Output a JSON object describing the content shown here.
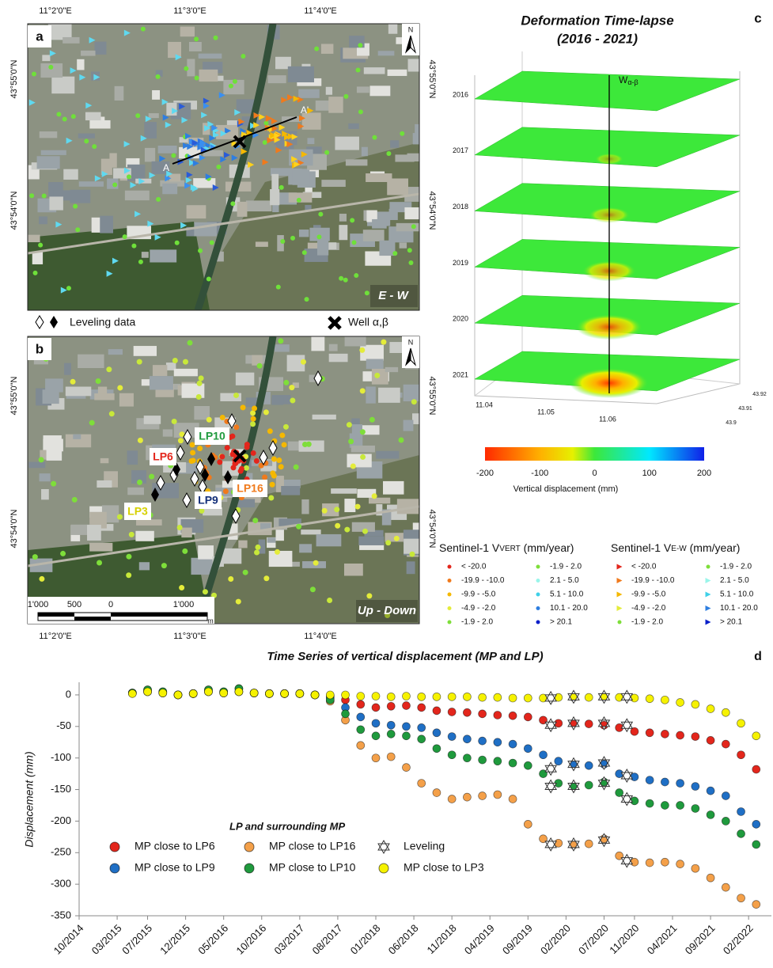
{
  "panel_a": {
    "letter": "a",
    "orientation": "E - W",
    "section_start": "A",
    "section_end": "A'",
    "north": "N",
    "lon_labels": [
      "11°2'0\"E",
      "11°3'0\"E",
      "11°4'0\"E"
    ],
    "lat_labels": [
      "43°55'0\"N",
      "43°54'0\"N"
    ]
  },
  "map_legend": {
    "leveling": "Leveling data",
    "well": "Well α,β"
  },
  "panel_b": {
    "letter": "b",
    "orientation": "Up - Down",
    "north": "N",
    "lp_labels": [
      "LP10",
      "LP6",
      "LP16",
      "LP9",
      "LP3"
    ],
    "lon_labels": [
      "11°2'0\"E",
      "11°3'0\"E",
      "11°4'0\"E"
    ],
    "lat_labels": [
      "43°55'0\"N",
      "43°54'0\"N"
    ],
    "scale_labels": [
      "1'000",
      "500",
      "0",
      "1'000"
    ],
    "scale_unit": "m"
  },
  "panel_c": {
    "title": "Deformation Time-lapse",
    "subtitle": "(2016 - 2021)",
    "letter": "c",
    "well_label": "W",
    "well_sub": "α-β",
    "years": [
      2016,
      2017,
      2018,
      2019,
      2020,
      2021
    ],
    "x_ticks": [
      11.04,
      11.05,
      11.06
    ],
    "y_ticks": [
      43.92,
      43.91,
      43.9
    ],
    "colorbar": {
      "lim": [
        -200,
        200
      ],
      "ticks": [
        -200,
        -100,
        0,
        100,
        200
      ],
      "label": "Vertical displacement (mm)"
    }
  },
  "sentinel_legends": [
    {
      "prefix": "Sentinel-1 V",
      "sub": "VERT",
      "suffix": " (mm/year)",
      "items": [
        {
          "label": "< -20.0",
          "color": "#e3261c",
          "shape": "circle"
        },
        {
          "label": "-19.9 - -10.0",
          "color": "#f07a1c",
          "shape": "circle"
        },
        {
          "label": "-9.9 - -5.0",
          "color": "#f5b800",
          "shape": "circle"
        },
        {
          "label": "-4.9 - -2.0",
          "color": "#e4ec3a",
          "shape": "circle"
        },
        {
          "label": "-1.9 - 2.0",
          "color": "#7ede3a",
          "shape": "circle"
        },
        {
          "label": "-1.9 - 2.0",
          "color": "#7ede3a",
          "shape": "circle"
        },
        {
          "label": "2.1 - 5.0",
          "color": "#9af5ea",
          "shape": "circle"
        },
        {
          "label": "5.1 - 10.0",
          "color": "#3fd0e8",
          "shape": "circle"
        },
        {
          "label": "10.1 - 20.0",
          "color": "#2e7ee0",
          "shape": "circle"
        },
        {
          "label": "> 20.1",
          "color": "#0a1fc9",
          "shape": "circle"
        }
      ]
    },
    {
      "prefix": "Sentinel-1 V",
      "sub": "E-W",
      "suffix": " (mm/year)",
      "items": [
        {
          "label": "< -20.0",
          "color": "#e3261c",
          "shape": "triangle"
        },
        {
          "label": "-19.9 - -10.0",
          "color": "#f07a1c",
          "shape": "triangle"
        },
        {
          "label": "-9.9 - -5.0",
          "color": "#f5b800",
          "shape": "triangle"
        },
        {
          "label": "-4.9 - -2.0",
          "color": "#e4ec3a",
          "shape": "triangle"
        },
        {
          "label": "-1.9 - 2.0",
          "color": "#7ede3a",
          "shape": "circle"
        },
        {
          "label": "-1.9 - 2.0",
          "color": "#7ede3a",
          "shape": "circle"
        },
        {
          "label": "2.1 - 5.0",
          "color": "#9af5ea",
          "shape": "triangle"
        },
        {
          "label": "5.1 - 10.0",
          "color": "#3fd0e8",
          "shape": "triangle"
        },
        {
          "label": "10.1 - 20.0",
          "color": "#2e7ee0",
          "shape": "triangle"
        },
        {
          "label": "> 20.1",
          "color": "#0a1fc9",
          "shape": "triangle"
        }
      ]
    }
  ],
  "chart_data": {
    "type": "scatter",
    "title": "Time Series of vertical displacement (MP and LP)",
    "letter": "d",
    "y_label": "Displacement (mm)",
    "legend_title": "LP and surrounding MP",
    "x": [
      "2015-05",
      "2015-07",
      "2015-09",
      "2015-11",
      "2016-01",
      "2016-03",
      "2016-05",
      "2016-07",
      "2016-09",
      "2016-11",
      "2017-01",
      "2017-03",
      "2017-05",
      "2017-07",
      "2017-09",
      "2017-11",
      "2018-01",
      "2018-03",
      "2018-05",
      "2018-07",
      "2018-09",
      "2018-11",
      "2019-01",
      "2019-03",
      "2019-05",
      "2019-07",
      "2019-09",
      "2019-11",
      "2020-01",
      "2020-03",
      "2020-05",
      "2020-07",
      "2020-09",
      "2020-11",
      "2021-01",
      "2021-03",
      "2021-05",
      "2021-07",
      "2021-09",
      "2021-11",
      "2022-01",
      "2022-03"
    ],
    "series": [
      {
        "name": "MP close to LP6",
        "color": "#e3261c",
        "values": [
          3,
          5,
          3,
          0,
          2,
          5,
          3,
          5,
          3,
          2,
          2,
          2,
          0,
          -2,
          -8,
          -15,
          -20,
          -18,
          -17,
          -20,
          -25,
          -27,
          -28,
          -30,
          -32,
          -33,
          -35,
          -40,
          -45,
          -45,
          -46,
          -48,
          -52,
          -58,
          -60,
          -62,
          -64,
          -66,
          -72,
          -78,
          -95,
          -118
        ]
      },
      {
        "name": "MP close to LP16",
        "color": "#f4a049",
        "values": [
          3,
          8,
          5,
          0,
          2,
          8,
          5,
          10,
          3,
          2,
          2,
          2,
          0,
          -10,
          -40,
          -80,
          -100,
          -98,
          -115,
          -140,
          -155,
          -165,
          -162,
          -160,
          -158,
          -165,
          -205,
          -228,
          -235,
          -238,
          -236,
          -228,
          -255,
          -265,
          -266,
          -265,
          -268,
          -275,
          -290,
          -305,
          -322,
          -332
        ]
      },
      {
        "name": "MP close to LP9",
        "color": "#1f6fc5",
        "values": [
          3,
          5,
          3,
          0,
          2,
          5,
          3,
          5,
          3,
          2,
          2,
          2,
          0,
          -5,
          -20,
          -35,
          -45,
          -48,
          -50,
          -52,
          -60,
          -66,
          -70,
          -73,
          -75,
          -78,
          -85,
          -95,
          -105,
          -110,
          -112,
          -110,
          -125,
          -130,
          -135,
          -138,
          -140,
          -145,
          -152,
          -160,
          -185,
          -205
        ]
      },
      {
        "name": "MP close to LP10",
        "color": "#1f9a3d",
        "values": [
          3,
          8,
          5,
          0,
          2,
          8,
          5,
          10,
          3,
          2,
          2,
          2,
          0,
          -8,
          -30,
          -55,
          -65,
          -62,
          -65,
          -70,
          -85,
          -95,
          -100,
          -103,
          -105,
          -108,
          -112,
          -125,
          -140,
          -145,
          -143,
          -138,
          -155,
          -168,
          -172,
          -175,
          -175,
          -180,
          -190,
          -200,
          -220,
          -237
        ]
      },
      {
        "name": "MP close to LP3",
        "color": "#f6f200",
        "values": [
          2,
          5,
          3,
          0,
          2,
          5,
          3,
          5,
          3,
          2,
          2,
          2,
          0,
          0,
          0,
          -2,
          -2,
          -3,
          -2,
          -3,
          -3,
          -3,
          -3,
          -4,
          -4,
          -5,
          -5,
          -5,
          -4,
          -4,
          -4,
          -3,
          -4,
          -5,
          -6,
          -8,
          -12,
          -15,
          -22,
          -28,
          -45,
          -65
        ]
      }
    ],
    "leveling": {
      "name": "Leveling",
      "x": [
        "2019-12",
        "2020-03",
        "2020-07",
        "2020-10"
      ],
      "values": [
        [
          -48,
          -45,
          -45,
          -48
        ],
        [
          -237,
          -237,
          -230,
          -263
        ],
        [
          -117,
          -110,
          -108,
          -128
        ],
        [
          -145,
          -145,
          -140,
          -165
        ],
        [
          -5,
          -3,
          -3,
          -3
        ]
      ]
    },
    "xlim": [
      "2014-10",
      "2022-05"
    ],
    "xticks": [
      {
        "value": "2014-10",
        "label": "10/2014"
      },
      {
        "value": "2015-03",
        "label": "03/2015"
      },
      {
        "value": "2015-07",
        "label": "07/2015"
      },
      {
        "value": "2015-12",
        "label": "12/2015"
      },
      {
        "value": "2016-05",
        "label": "05/2016"
      },
      {
        "value": "2016-10",
        "label": "10/2016"
      },
      {
        "value": "2017-03",
        "label": "03/2017"
      },
      {
        "value": "2017-08",
        "label": "08/2017"
      },
      {
        "value": "2018-01",
        "label": "01/2018"
      },
      {
        "value": "2018-06",
        "label": "06/2018"
      },
      {
        "value": "2018-11",
        "label": "11/2018"
      },
      {
        "value": "2019-04",
        "label": "04/2019"
      },
      {
        "value": "2019-09",
        "label": "09/2019"
      },
      {
        "value": "2020-02",
        "label": "02/2020"
      },
      {
        "value": "2020-07",
        "label": "07/2020"
      },
      {
        "value": "2020-11",
        "label": "11/2020"
      },
      {
        "value": "2021-04",
        "label": "04/2021"
      },
      {
        "value": "2021-09",
        "label": "09/2021"
      },
      {
        "value": "2022-02",
        "label": "02/2022"
      }
    ],
    "ylim": [
      -350,
      20
    ],
    "yticks": [
      0,
      -50,
      -100,
      -150,
      -200,
      -250,
      -300,
      -350
    ],
    "grid": false
  }
}
